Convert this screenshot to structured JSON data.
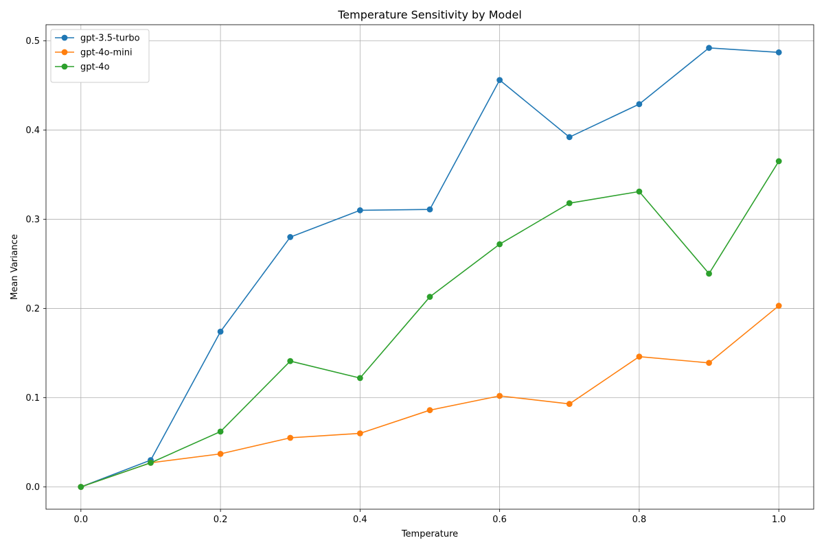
{
  "chart_data": {
    "type": "line",
    "title": "Temperature Sensitivity by Model",
    "xlabel": "Temperature",
    "ylabel": "Mean Variance",
    "x": [
      0.0,
      0.1,
      0.2,
      0.3,
      0.4,
      0.5,
      0.6,
      0.7,
      0.8,
      0.9,
      1.0
    ],
    "xlim": [
      -0.05,
      1.05
    ],
    "ylim": [
      -0.025,
      0.518
    ],
    "xticks": [
      "0.0",
      "0.2",
      "0.4",
      "0.6",
      "0.8",
      "1.0"
    ],
    "yticks": [
      "0.0",
      "0.1",
      "0.2",
      "0.3",
      "0.4",
      "0.5"
    ],
    "grid": true,
    "legend_position": "top-left",
    "series": [
      {
        "name": "gpt-3.5-turbo",
        "color": "#1f77b4",
        "values": [
          0.0,
          0.03,
          0.174,
          0.28,
          0.31,
          0.311,
          0.456,
          0.392,
          0.429,
          0.492,
          0.487
        ]
      },
      {
        "name": "gpt-4o-mini",
        "color": "#ff7f0e",
        "values": [
          0.0,
          0.027,
          0.037,
          0.055,
          0.06,
          0.086,
          0.102,
          0.093,
          0.146,
          0.139,
          0.203
        ]
      },
      {
        "name": "gpt-4o",
        "color": "#2ca02c",
        "values": [
          0.0,
          0.027,
          0.062,
          0.141,
          0.122,
          0.213,
          0.272,
          0.318,
          0.331,
          0.239,
          0.365
        ]
      }
    ]
  }
}
